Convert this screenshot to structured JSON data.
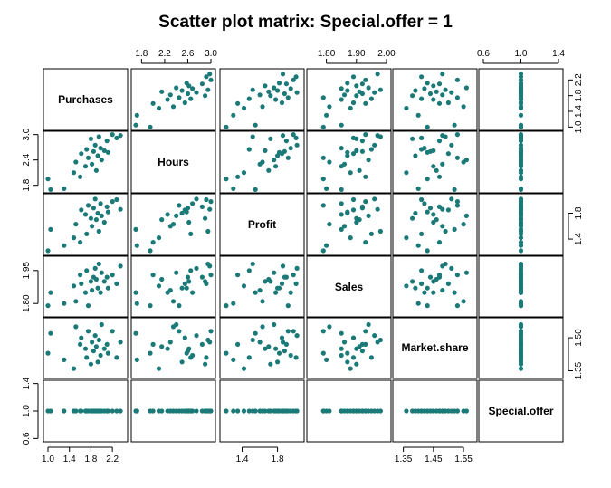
{
  "chart_data": {
    "type": "scatter-matrix",
    "title": "Scatter plot matrix: Special.offer = 1",
    "point_color": "#1b7a78",
    "variables": [
      {
        "name": "Purchases",
        "range": [
          1.0,
          2.4
        ],
        "ticks": [
          1.0,
          1.4,
          1.8,
          2.2
        ],
        "tick_labels": [
          "1.0",
          "1.4",
          "1.8",
          "2.2"
        ]
      },
      {
        "name": "Hours",
        "range": [
          1.7,
          3.0
        ],
        "ticks": [
          1.8,
          2.2,
          2.6,
          3.0
        ],
        "tick_labels": [
          "1.8",
          "2.2",
          "2.6",
          "3.0"
        ],
        "ytick_labels": [
          "1.8",
          "2.4",
          "3.0"
        ],
        "yticks": [
          1.8,
          2.4,
          3.0
        ]
      },
      {
        "name": "Profit",
        "range": [
          1.2,
          2.05
        ],
        "ticks": [
          1.4,
          1.8
        ],
        "tick_labels": [
          "1.4",
          "1.8"
        ]
      },
      {
        "name": "Sales",
        "range": [
          1.75,
          2.0
        ],
        "ticks": [
          1.8,
          1.9,
          2.0
        ],
        "tick_labels": [
          "1.80",
          "1.90",
          "2.00"
        ],
        "ytick_labels": [
          "1.80",
          "1.95"
        ],
        "yticks": [
          1.8,
          1.95
        ]
      },
      {
        "name": "Market.share",
        "range": [
          1.33,
          1.58
        ],
        "ticks": [
          1.35,
          1.45,
          1.55
        ],
        "tick_labels": [
          "1.35",
          "1.45",
          "1.55"
        ],
        "ytick_labels": [
          "1.35",
          "1.50"
        ],
        "yticks": [
          1.35,
          1.5
        ]
      },
      {
        "name": "Special.offer",
        "range": [
          0.6,
          1.4
        ],
        "ticks": [
          0.6,
          1.0,
          1.4
        ],
        "tick_labels": [
          "0.6",
          "1.0",
          "1.4"
        ]
      }
    ],
    "points": [
      [
        1.0,
        1.95,
        1.22,
        1.79,
        1.43,
        1.0
      ],
      [
        1.05,
        1.7,
        1.55,
        1.85,
        1.52,
        1.0
      ],
      [
        1.3,
        1.72,
        1.3,
        1.8,
        1.4,
        1.0
      ],
      [
        1.48,
        2.1,
        1.42,
        1.88,
        1.36,
        1.0
      ],
      [
        1.52,
        2.35,
        1.63,
        1.81,
        1.55,
        1.0
      ],
      [
        1.6,
        2.0,
        1.35,
        1.93,
        1.47,
        1.0
      ],
      [
        1.62,
        2.55,
        1.85,
        1.89,
        1.5,
        1.0
      ],
      [
        1.7,
        2.25,
        1.78,
        1.85,
        1.45,
        1.0
      ],
      [
        1.72,
        2.65,
        1.48,
        1.95,
        1.41,
        1.0
      ],
      [
        1.75,
        2.45,
        1.92,
        1.79,
        1.53,
        1.0
      ],
      [
        1.8,
        2.9,
        1.72,
        1.9,
        1.38,
        1.0
      ],
      [
        1.82,
        2.3,
        1.6,
        1.86,
        1.48,
        1.0
      ],
      [
        1.85,
        2.6,
        1.88,
        1.92,
        1.44,
        1.0
      ],
      [
        1.88,
        2.75,
        2.02,
        1.96,
        1.51,
        1.0
      ],
      [
        1.9,
        2.15,
        1.7,
        1.91,
        1.46,
        1.0
      ],
      [
        1.93,
        2.5,
        1.8,
        1.87,
        1.39,
        1.0
      ],
      [
        1.95,
        2.95,
        1.52,
        1.98,
        1.49,
        1.0
      ],
      [
        1.98,
        2.68,
        1.95,
        1.85,
        1.42,
        1.0
      ],
      [
        2.0,
        2.4,
        1.76,
        1.94,
        1.56,
        1.0
      ],
      [
        2.05,
        2.62,
        1.66,
        1.9,
        1.45,
        1.0
      ],
      [
        2.1,
        2.85,
        1.9,
        1.92,
        1.47,
        1.0
      ],
      [
        2.12,
        2.58,
        1.82,
        1.87,
        1.43,
        1.0
      ],
      [
        2.2,
        3.0,
        1.98,
        1.93,
        1.53,
        1.0
      ],
      [
        2.28,
        2.92,
        2.01,
        1.89,
        1.41,
        1.0
      ],
      [
        2.35,
        2.98,
        1.86,
        1.97,
        1.48,
        1.0
      ]
    ]
  }
}
